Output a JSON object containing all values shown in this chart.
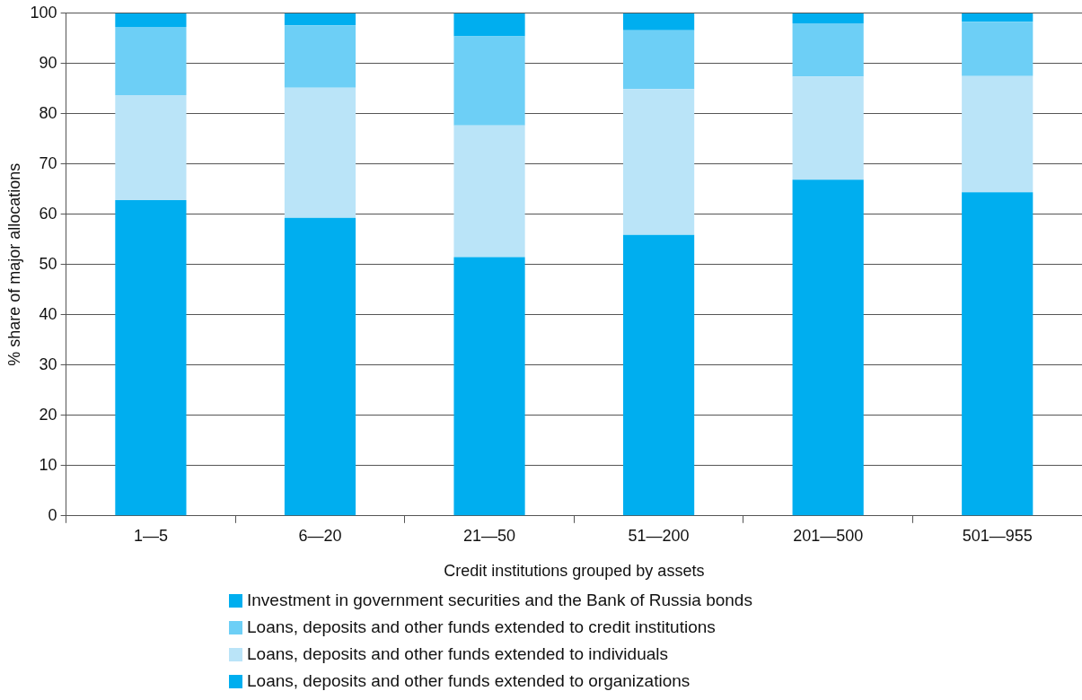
{
  "chart_data": {
    "type": "bar",
    "stacked": true,
    "xlabel": "Credit institutions grouped by assets",
    "ylabel": "% share of major allocations",
    "categories": [
      "1—5",
      "6—20",
      "21—50",
      "51—200",
      "201—500",
      "501—955"
    ],
    "series": [
      {
        "name": "Loans, deposits and other funds extended to organizations",
        "color": "#00aeef",
        "values": [
          62.8,
          59.3,
          51.5,
          55.9,
          66.9,
          64.4
        ]
      },
      {
        "name": "Loans, deposits and other funds extended to individuals",
        "color": "#bae4f8",
        "values": [
          20.9,
          25.9,
          26.2,
          29.0,
          20.5,
          23.1
        ]
      },
      {
        "name": "Loans, deposits and other funds extended to credit institutions",
        "color": "#6dcff6",
        "values": [
          13.6,
          12.4,
          17.7,
          11.7,
          10.6,
          10.8
        ]
      },
      {
        "name": "Investment in government securities and the Bank of Russia bonds",
        "color": "#00aeef",
        "values": [
          2.7,
          2.4,
          4.6,
          3.4,
          2.0,
          1.7
        ]
      }
    ],
    "ylim": [
      0,
      100
    ],
    "yticks": [
      0,
      10,
      20,
      30,
      40,
      50,
      60,
      70,
      80,
      90,
      100
    ],
    "grid": "y",
    "legend": "bottom"
  }
}
